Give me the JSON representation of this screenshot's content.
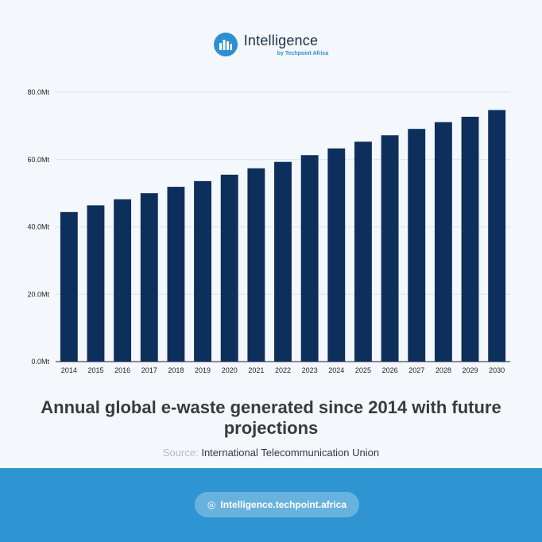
{
  "brand": {
    "name": "Intelligence",
    "sub": "by Techpoint Africa",
    "accent": "#2f8fd3"
  },
  "chart_data": {
    "type": "bar",
    "categories": [
      "2014",
      "2015",
      "2016",
      "2017",
      "2018",
      "2019",
      "2020",
      "2021",
      "2022",
      "2023",
      "2024",
      "2025",
      "2026",
      "2027",
      "2028",
      "2029",
      "2030"
    ],
    "values": [
      44.4,
      46.4,
      48.2,
      50.0,
      51.9,
      53.6,
      55.5,
      57.4,
      59.3,
      61.3,
      63.3,
      65.3,
      67.2,
      69.1,
      71.1,
      72.7,
      74.7
    ],
    "ylim": [
      0,
      80
    ],
    "yticks": [
      0,
      20,
      40,
      60,
      80
    ],
    "ytick_labels": [
      "0.0Mt",
      "20.0Mt",
      "40.0Mt",
      "60.0Mt",
      "80.0Mt"
    ],
    "bar_color": "#0d2f5c",
    "grid": true,
    "title": "Annual global e-waste generated since 2014 with future projections",
    "xlabel": "",
    "ylabel": ""
  },
  "source": {
    "label": "Source:",
    "text": "International Telecommunication Union"
  },
  "footer": {
    "link_text": "Intelligence.techpoint.africa",
    "background": "#2f95d2"
  }
}
